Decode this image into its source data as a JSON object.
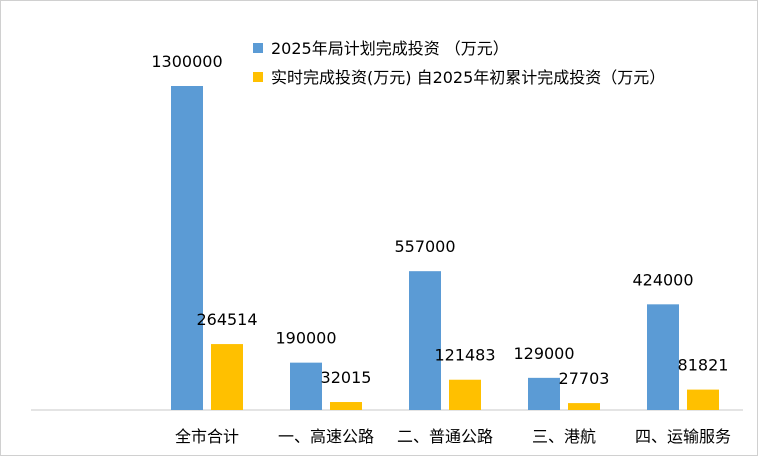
{
  "chart_data": {
    "type": "bar",
    "title": "",
    "xlabel": "",
    "ylabel": "",
    "ylim": [
      0,
      1300000
    ],
    "grid": false,
    "legend_position": "top-right",
    "categories": [
      "全市合计",
      "一、高速公路",
      "二、普通公路",
      "三、港航",
      "四、运输服务"
    ],
    "series": [
      {
        "name": "2025年局计划完成投资 （万元）",
        "color": "#5b9bd5",
        "values": [
          1300000,
          190000,
          557000,
          129000,
          424000
        ]
      },
      {
        "name": "实时完成投资(万元) 自2025年初累计完成投资（万元）",
        "color": "#ffc000",
        "values": [
          264514,
          32015,
          121483,
          27703,
          81821
        ]
      }
    ]
  }
}
